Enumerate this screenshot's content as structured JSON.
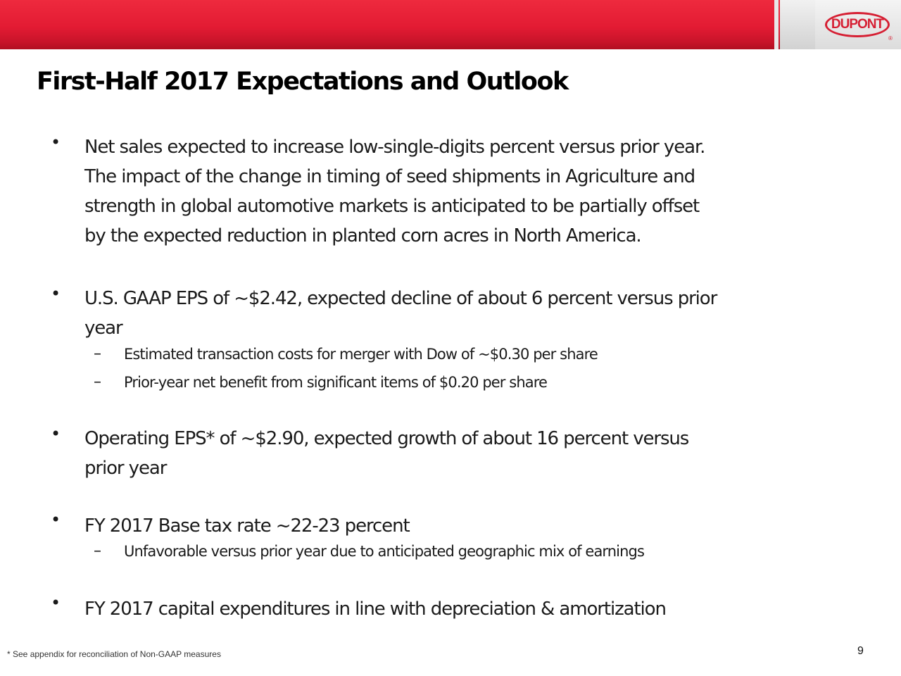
{
  "header": {
    "logo_text": "DUPONT",
    "logo_mark": "®",
    "brand_color": "#e31b33"
  },
  "title": "First-Half 2017 Expectations and Outlook",
  "bullet_symbol": "•",
  "dash_symbol": "–",
  "bullets": [
    {
      "lines": [
        "Net sales expected to increase low-single-digits percent versus prior year.",
        "The impact of the change in timing of seed shipments in Agriculture and",
        "strength in global automotive markets is anticipated to be partially offset",
        "by the expected reduction in planted corn acres in North America."
      ],
      "subs": []
    },
    {
      "lines": [
        "U.S. GAAP EPS of ~$2.42, expected decline of about 6 percent versus prior",
        "year"
      ],
      "subs": [
        "Estimated transaction costs for merger with Dow of ~$0.30 per share",
        "Prior-year net benefit from significant items of $0.20 per share"
      ]
    },
    {
      "lines": [
        "Operating EPS* of ~$2.90, expected growth of about 16 percent versus",
        "prior year"
      ],
      "subs": []
    },
    {
      "lines": [
        "FY 2017 Base tax rate ~22-23 percent"
      ],
      "subs": [
        "Unfavorable versus prior year due to anticipated geographic mix of earnings"
      ]
    },
    {
      "lines": [
        "FY 2017 capital expenditures in line with depreciation & amortization"
      ],
      "subs": []
    }
  ],
  "footnote": "* See appendix for reconciliation of Non-GAAP measures",
  "page_number": "9"
}
